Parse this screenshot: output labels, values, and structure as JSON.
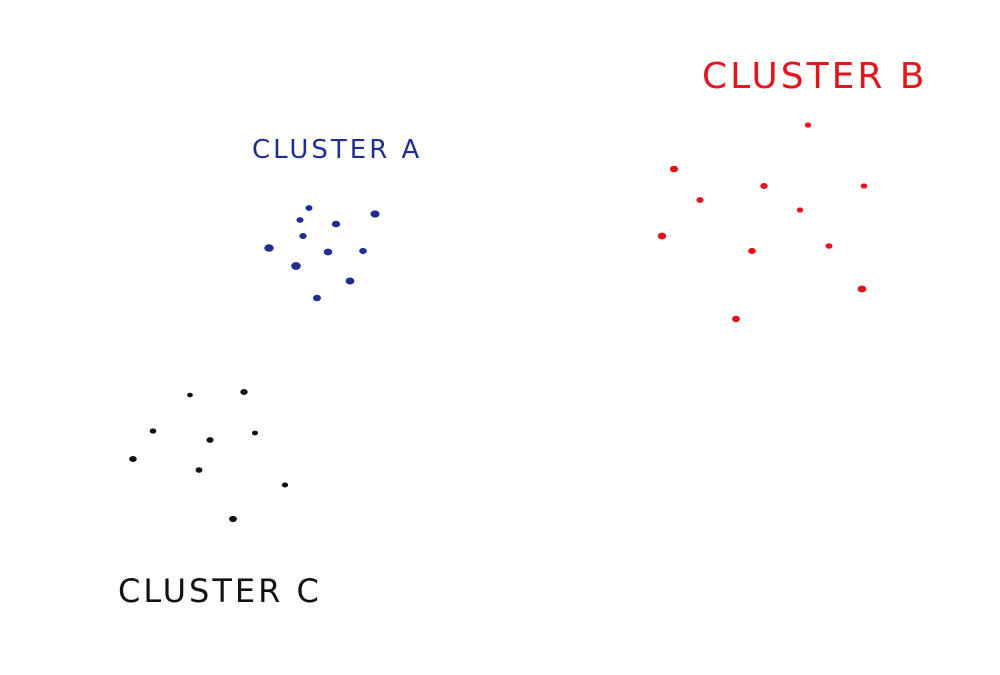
{
  "clusters": [
    {
      "id": "a",
      "label": "CLUSTER A",
      "color": "#1f2f8f",
      "point_count": 11
    },
    {
      "id": "b",
      "label": "CLUSTER B",
      "color": "#e2161c",
      "point_count": 11
    },
    {
      "id": "c",
      "label": "CLUSTER C",
      "color": "#111111",
      "point_count": 9
    }
  ]
}
